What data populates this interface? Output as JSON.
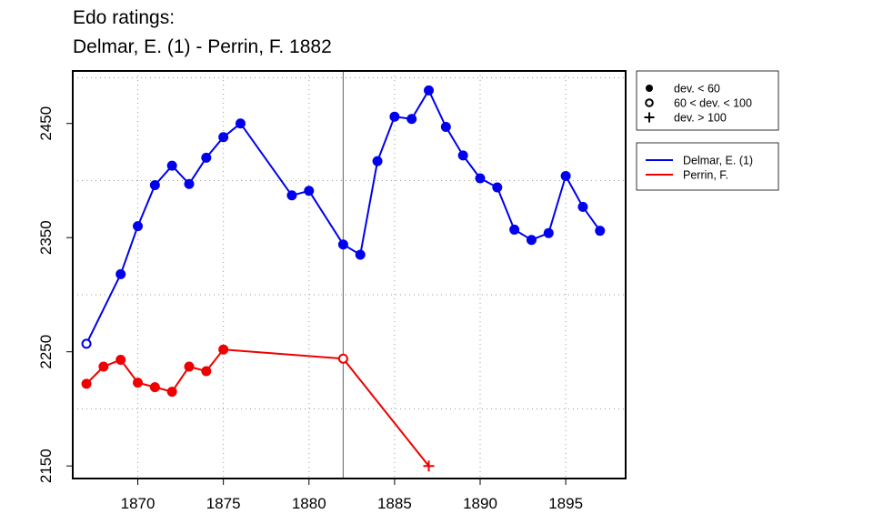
{
  "chart_data": {
    "type": "line",
    "title_lines": [
      "Edo ratings:",
      "Delmar, E. (1) - Perrin, F. 1882"
    ],
    "xlabel": "",
    "ylabel": "",
    "xlim": [
      1866.2,
      1898.5
    ],
    "ylim": [
      2139,
      2496
    ],
    "x_ticks": [
      1870,
      1875,
      1880,
      1885,
      1890,
      1895
    ],
    "y_ticks": [
      2150,
      2250,
      2350,
      2450
    ],
    "grid_x": [
      1870,
      1875,
      1880,
      1885,
      1890,
      1895
    ],
    "grid_y": [
      2200,
      2300,
      2400,
      2490
    ],
    "grid": true,
    "vline_x": 1882,
    "deviation_legend": {
      "position": "top-right",
      "items": [
        {
          "marker": "filled-circle",
          "label": "dev. < 60"
        },
        {
          "marker": "open-circle",
          "label": "60 < dev. < 100"
        },
        {
          "marker": "plus",
          "label": "dev. > 100"
        }
      ]
    },
    "series": [
      {
        "name": "Delmar, E. (1)",
        "color": "#0000ee",
        "points": [
          {
            "x": 1867,
            "y": 2257,
            "m": "open-circle"
          },
          {
            "x": 1869,
            "y": 2318,
            "m": "filled-circle"
          },
          {
            "x": 1870,
            "y": 2360,
            "m": "filled-circle"
          },
          {
            "x": 1871,
            "y": 2396,
            "m": "filled-circle"
          },
          {
            "x": 1872,
            "y": 2413,
            "m": "filled-circle"
          },
          {
            "x": 1873,
            "y": 2397,
            "m": "filled-circle"
          },
          {
            "x": 1874,
            "y": 2420,
            "m": "filled-circle"
          },
          {
            "x": 1875,
            "y": 2438,
            "m": "filled-circle"
          },
          {
            "x": 1876,
            "y": 2450,
            "m": "filled-circle"
          },
          {
            "x": 1879,
            "y": 2387,
            "m": "filled-circle"
          },
          {
            "x": 1880,
            "y": 2391,
            "m": "filled-circle"
          },
          {
            "x": 1882,
            "y": 2344,
            "m": "filled-circle"
          },
          {
            "x": 1883,
            "y": 2335,
            "m": "filled-circle"
          },
          {
            "x": 1884,
            "y": 2417,
            "m": "filled-circle"
          },
          {
            "x": 1885,
            "y": 2456,
            "m": "filled-circle"
          },
          {
            "x": 1886,
            "y": 2454,
            "m": "filled-circle"
          },
          {
            "x": 1887,
            "y": 2479,
            "m": "filled-circle"
          },
          {
            "x": 1888,
            "y": 2447,
            "m": "filled-circle"
          },
          {
            "x": 1889,
            "y": 2422,
            "m": "filled-circle"
          },
          {
            "x": 1890,
            "y": 2402,
            "m": "filled-circle"
          },
          {
            "x": 1891,
            "y": 2394,
            "m": "filled-circle"
          },
          {
            "x": 1892,
            "y": 2357,
            "m": "filled-circle"
          },
          {
            "x": 1893,
            "y": 2348,
            "m": "filled-circle"
          },
          {
            "x": 1894,
            "y": 2354,
            "m": "filled-circle"
          },
          {
            "x": 1895,
            "y": 2404,
            "m": "filled-circle"
          },
          {
            "x": 1896,
            "y": 2377,
            "m": "filled-circle"
          },
          {
            "x": 1897,
            "y": 2356,
            "m": "filled-circle"
          }
        ]
      },
      {
        "name": "Perrin, F.",
        "color": "#ee0000",
        "points": [
          {
            "x": 1867,
            "y": 2222,
            "m": "filled-circle"
          },
          {
            "x": 1868,
            "y": 2237,
            "m": "filled-circle"
          },
          {
            "x": 1869,
            "y": 2243,
            "m": "filled-circle"
          },
          {
            "x": 1870,
            "y": 2223,
            "m": "filled-circle"
          },
          {
            "x": 1871,
            "y": 2219,
            "m": "filled-circle"
          },
          {
            "x": 1872,
            "y": 2215,
            "m": "filled-circle"
          },
          {
            "x": 1873,
            "y": 2237,
            "m": "filled-circle"
          },
          {
            "x": 1874,
            "y": 2233,
            "m": "filled-circle"
          },
          {
            "x": 1875,
            "y": 2252,
            "m": "filled-circle"
          },
          {
            "x": 1882,
            "y": 2244,
            "m": "open-circle"
          },
          {
            "x": 1887,
            "y": 2150,
            "m": "plus"
          }
        ]
      }
    ]
  }
}
